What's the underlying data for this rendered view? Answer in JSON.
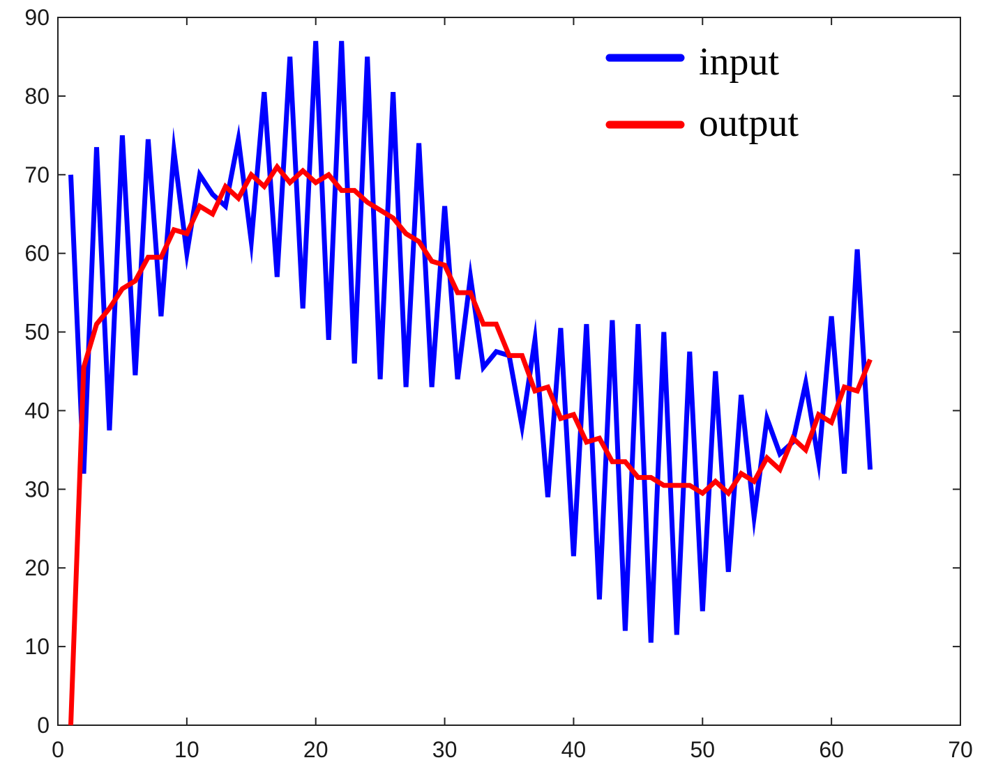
{
  "chart_data": {
    "type": "line",
    "title": "",
    "xlabel": "",
    "ylabel": "",
    "xlim": [
      0,
      70
    ],
    "ylim": [
      0,
      90
    ],
    "x_ticks": [
      0,
      10,
      20,
      30,
      40,
      50,
      60,
      70
    ],
    "y_ticks": [
      0,
      10,
      20,
      30,
      40,
      50,
      60,
      70,
      80,
      90
    ],
    "grid": false,
    "legend_position": "top-right",
    "x": [
      1,
      2,
      3,
      4,
      5,
      6,
      7,
      8,
      9,
      10,
      11,
      12,
      13,
      14,
      15,
      16,
      17,
      18,
      19,
      20,
      21,
      22,
      23,
      24,
      25,
      26,
      27,
      28,
      29,
      30,
      31,
      32,
      33,
      34,
      35,
      36,
      37,
      38,
      39,
      40,
      41,
      42,
      43,
      44,
      45,
      46,
      47,
      48,
      49,
      50,
      51,
      52,
      53,
      54,
      55,
      56,
      57,
      58,
      59,
      60,
      61,
      62,
      63
    ],
    "series": [
      {
        "name": "input",
        "color": "#0000ff",
        "values": [
          70,
          32,
          73.5,
          37.5,
          75,
          44.5,
          74.5,
          52,
          73,
          60,
          70,
          67.5,
          66,
          74.5,
          61.5,
          80.5,
          57,
          85,
          53,
          87,
          49,
          87,
          46,
          85,
          44,
          80.5,
          43,
          74,
          43,
          66,
          44,
          57,
          45.5,
          47.5,
          47,
          38,
          49,
          29,
          50.5,
          21.5,
          51,
          16,
          51.5,
          12,
          51,
          10.5,
          50,
          11.5,
          47.5,
          14.5,
          45,
          19.5,
          42,
          26.5,
          39,
          34.5,
          36,
          43.5,
          33.5,
          52,
          32,
          60.5,
          32.5
        ]
      },
      {
        "name": "output",
        "color": "#ff0000",
        "values": [
          0,
          45.5,
          51,
          53,
          55.5,
          56.5,
          59.5,
          59.5,
          63,
          62.5,
          66,
          65,
          68.5,
          67,
          70,
          68.5,
          71,
          69,
          70.5,
          69,
          70,
          68,
          68,
          66.5,
          65.5,
          64.5,
          62.5,
          61.5,
          59,
          58.5,
          55,
          55,
          51,
          51,
          47,
          47,
          42.5,
          43,
          39,
          39.5,
          36,
          36.5,
          33.5,
          33.5,
          31.5,
          31.5,
          30.5,
          30.5,
          30.5,
          29.5,
          31,
          29.5,
          32,
          31,
          34,
          32.5,
          36.5,
          35,
          39.5,
          38.5,
          43,
          42.5,
          46.5
        ]
      }
    ]
  }
}
